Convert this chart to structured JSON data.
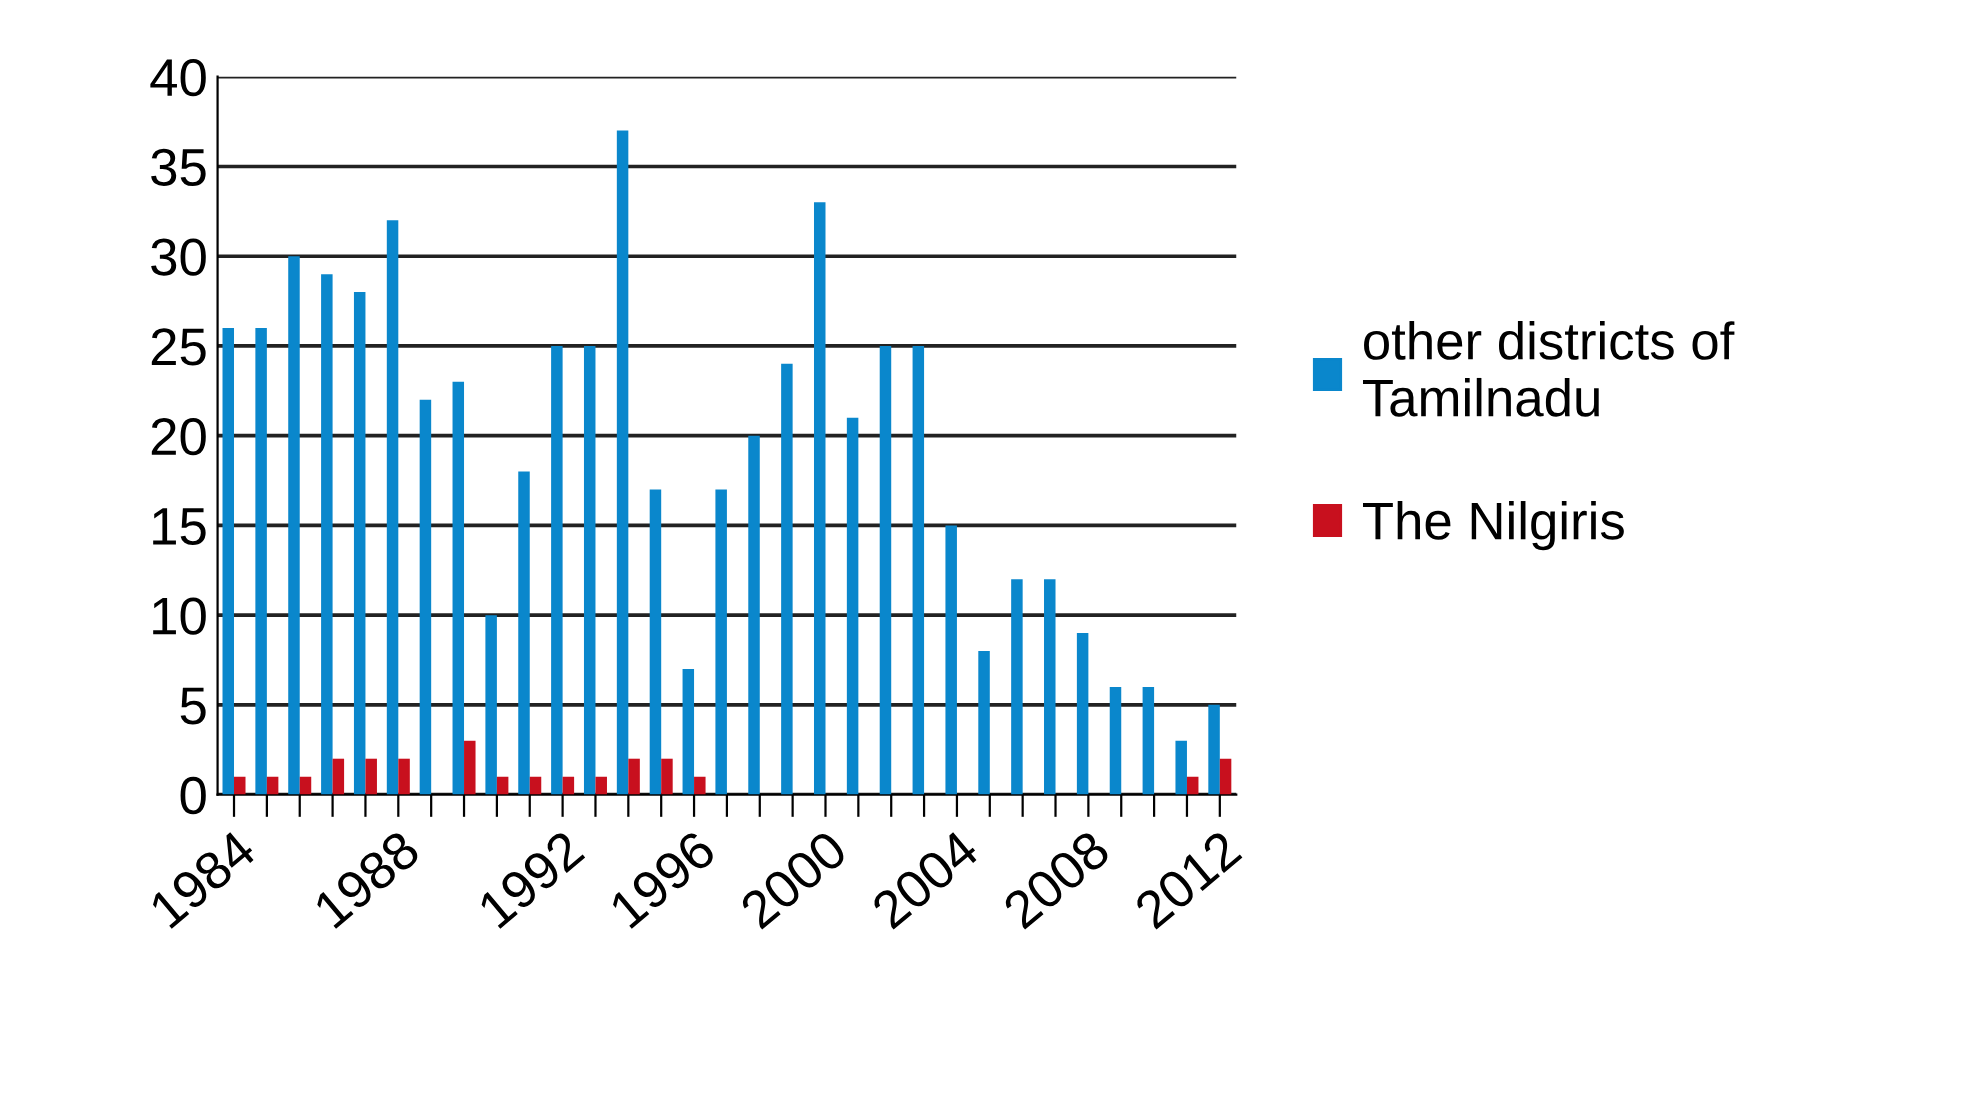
{
  "chart_data": {
    "type": "bar",
    "categories": [
      "1984",
      null,
      null,
      null,
      null,
      "1988",
      null,
      null,
      null,
      null,
      "1992",
      null,
      null,
      null,
      "1996",
      null,
      null,
      null,
      "2000",
      null,
      null,
      null,
      "2004",
      null,
      null,
      null,
      "2008",
      null,
      null,
      null,
      "2012"
    ],
    "series": [
      {
        "name": "other districts of Tamilnadu",
        "color": "#0a87cc",
        "values": [
          26,
          26,
          30,
          29,
          28,
          32,
          22,
          23,
          10,
          18,
          25,
          25,
          37,
          17,
          7,
          17,
          20,
          24,
          33,
          21,
          25,
          25,
          15,
          8,
          12,
          12,
          9,
          6,
          6,
          3,
          5
        ]
      },
      {
        "name": "The Nilgiris",
        "color": "#c8101e",
        "values": [
          1,
          1,
          1,
          2,
          2,
          2,
          0,
          3,
          1,
          1,
          1,
          1,
          2,
          2,
          1,
          0,
          0,
          0,
          0,
          0,
          0,
          0,
          0,
          0,
          0,
          0,
          0,
          0,
          0,
          1,
          2
        ]
      }
    ],
    "ylim": [
      0,
      40
    ],
    "yticks": [
      0,
      5,
      10,
      15,
      20,
      25,
      30,
      35,
      40
    ],
    "grid": "y",
    "legend": "right"
  }
}
